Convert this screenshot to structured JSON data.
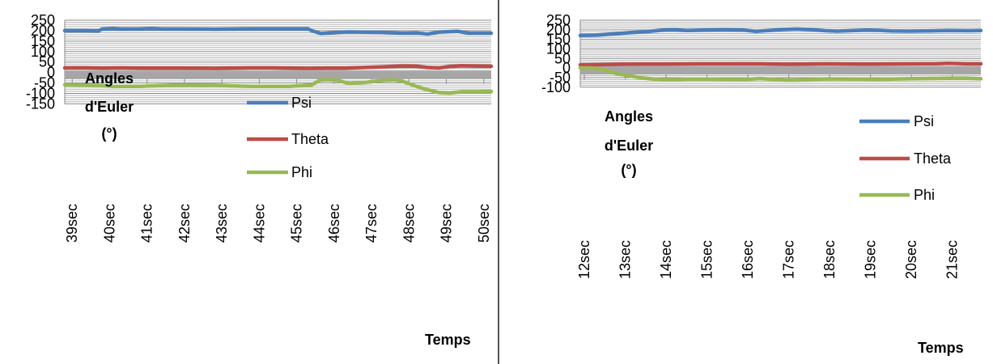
{
  "chart_data": [
    {
      "type": "line",
      "ylim": [
        -150,
        250
      ],
      "yticks": [
        -150,
        -100,
        -50,
        0,
        50,
        100,
        150,
        200,
        250
      ],
      "categories": [
        "39sec",
        "40sec",
        "41sec",
        "42sec",
        "43sec",
        "44sec",
        "45sec",
        "46sec",
        "47sec",
        "48sec",
        "49sec",
        "50sec"
      ],
      "annotation": [
        "Angles",
        "d'Euler",
        "(°)"
      ],
      "xlabel": "Temps",
      "grid": true,
      "legend_position": "center",
      "series": [
        {
          "name": "Psi",
          "color": "#4a7ebb",
          "x": [
            39,
            39.5,
            39.9,
            40,
            40.3,
            40.5,
            41,
            41.3,
            41.6,
            42,
            43,
            44,
            45,
            45.5,
            45.6,
            45.85,
            46,
            46.3,
            46.6,
            47,
            47.5,
            48,
            48.4,
            48.7,
            49,
            49.2,
            49.5,
            49.8,
            50.4
          ],
          "values": [
            200,
            200,
            199,
            208,
            210,
            208,
            208,
            210,
            208,
            208,
            207,
            209,
            209,
            209,
            200,
            186,
            188,
            192,
            194,
            193,
            192,
            188,
            189,
            184,
            193,
            195,
            197,
            188,
            188
          ]
        },
        {
          "name": "Theta",
          "color": "#be4b48",
          "x": [
            39,
            39.5,
            40,
            40.5,
            41,
            42,
            43,
            44,
            44.5,
            45,
            45.5,
            46,
            46.5,
            47,
            47.5,
            48,
            48.4,
            48.7,
            49,
            49.3,
            49.6,
            49.9,
            50.4
          ],
          "values": [
            22,
            23,
            21,
            22,
            21,
            21,
            20,
            22,
            22,
            21,
            20,
            21,
            21,
            24,
            27,
            31,
            30,
            24,
            22,
            29,
            32,
            31,
            30
          ]
        },
        {
          "name": "Phi",
          "color": "#98b954",
          "x": [
            39,
            39.5,
            40,
            40.3,
            40.6,
            41,
            41.5,
            42,
            43,
            43.5,
            44,
            45,
            45.6,
            45.8,
            46,
            46.3,
            46.6,
            47,
            47.5,
            47.8,
            48,
            48.3,
            48.6,
            49,
            49.3,
            49.6,
            50,
            50.4
          ],
          "values": [
            -58,
            -60,
            -63,
            -67,
            -66,
            -66,
            -63,
            -60,
            -61,
            -64,
            -66,
            -66,
            -60,
            -38,
            -35,
            -38,
            -52,
            -48,
            -38,
            -36,
            -40,
            -60,
            -78,
            -96,
            -98,
            -92,
            -92,
            -91
          ]
        }
      ]
    },
    {
      "type": "line",
      "ylim": [
        -100,
        250
      ],
      "yticks": [
        -100,
        -50,
        0,
        50,
        100,
        150,
        200,
        250
      ],
      "categories": [
        "12sec",
        "13sec",
        "14sec",
        "15sec",
        "16sec",
        "17sec",
        "18sec",
        "19sec",
        "20sec",
        "21sec"
      ],
      "annotation": [
        "Angles",
        "d'Euler",
        "(°)"
      ],
      "xlabel": "Temps",
      "grid": true,
      "legend_position": "right",
      "series": [
        {
          "name": "Psi",
          "color": "#4a7ebb",
          "x": [
            12,
            12.4,
            12.8,
            13.2,
            13.6,
            14,
            14.3,
            14.6,
            15,
            15.5,
            16,
            16.3,
            16.6,
            17,
            17.3,
            17.7,
            18,
            18.3,
            18.7,
            19,
            19.3,
            19.6,
            20,
            20.5,
            21,
            21.5,
            21.8
          ],
          "values": [
            170,
            172,
            178,
            185,
            190,
            198,
            200,
            196,
            198,
            200,
            198,
            192,
            196,
            202,
            204,
            200,
            195,
            193,
            196,
            198,
            197,
            194,
            193,
            194,
            196,
            195,
            196
          ]
        },
        {
          "name": "Theta",
          "color": "#be4b48",
          "x": [
            12,
            12.5,
            13,
            13.5,
            14,
            15,
            15.7,
            16,
            16.4,
            17,
            17.5,
            18,
            19,
            20,
            20.7,
            21,
            21.5,
            21.8
          ],
          "values": [
            17,
            18,
            20,
            21,
            21,
            22,
            22,
            23,
            22,
            20,
            21,
            22,
            21,
            22,
            23,
            25,
            22,
            22
          ]
        },
        {
          "name": "Phi",
          "color": "#98b954",
          "x": [
            12,
            12.3,
            12.6,
            12.9,
            13.2,
            13.5,
            13.8,
            14,
            14.3,
            14.6,
            15,
            15.5,
            16,
            16.4,
            16.8,
            17,
            17.3,
            17.6,
            18,
            18.4,
            18.8,
            19.2,
            19.6,
            20,
            20.5,
            21,
            21.4,
            21.8
          ],
          "values": [
            1,
            0,
            -10,
            -30,
            -40,
            -52,
            -58,
            -60,
            -61,
            -58,
            -58,
            -59,
            -60,
            -55,
            -60,
            -63,
            -63,
            -60,
            -57,
            -57,
            -58,
            -59,
            -58,
            -56,
            -55,
            -54,
            -53,
            -56
          ]
        }
      ]
    }
  ]
}
